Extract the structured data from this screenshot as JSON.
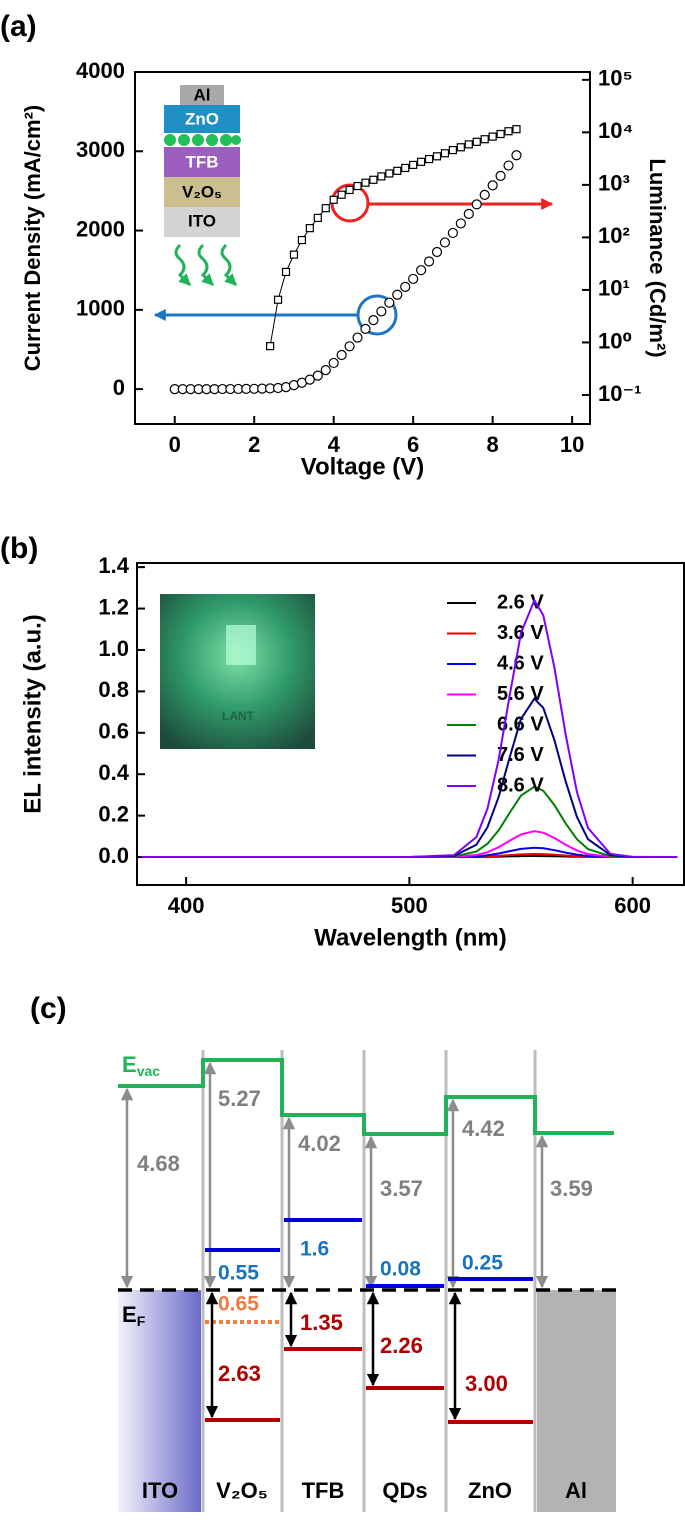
{
  "chart_data": [
    {
      "type": "scatter",
      "panel_label": "(a)",
      "xlabel": "Voltage (V)",
      "ylabel": "Current Density (mA/cm²)",
      "y2label": "Luminance (Cd/m²)",
      "xlim": [
        -1,
        10.45
      ],
      "xticks": [
        0,
        2,
        4,
        6,
        8,
        10
      ],
      "ylim": [
        -440,
        4000
      ],
      "yticks": [
        0,
        1000,
        2000,
        3000,
        4000
      ],
      "y2lim": [
        0.028,
        141000
      ],
      "y2log": true,
      "y2ticks": [
        {
          "value": 0.1,
          "label": "10⁻¹"
        },
        {
          "value": 1,
          "label": "10⁰"
        },
        {
          "value": 10,
          "label": "10¹"
        },
        {
          "value": 100,
          "label": "10²"
        },
        {
          "value": 1000,
          "label": "10³"
        },
        {
          "value": 10000,
          "label": "10⁴"
        },
        {
          "value": 100000,
          "label": "10⁵"
        }
      ],
      "inset_labels": [
        "Al",
        "ZnO",
        "TFB",
        "V₂O₅",
        "ITO"
      ],
      "series": [
        {
          "marker": "circle",
          "color": "#000000",
          "axis": "y",
          "x": [
            0,
            0.2,
            0.4,
            0.6,
            0.8,
            1.0,
            1.2,
            1.4,
            1.6,
            1.8,
            2.0,
            2.2,
            2.4,
            2.6,
            2.8,
            3.0,
            3.2,
            3.4,
            3.6,
            3.8,
            4.0,
            4.2,
            4.4,
            4.6,
            4.8,
            5.0,
            5.2,
            5.4,
            5.6,
            5.8,
            6.0,
            6.2,
            6.4,
            6.6,
            6.8,
            7.0,
            7.2,
            7.4,
            7.6,
            7.8,
            8.0,
            8.2,
            8.4,
            8.6
          ],
          "values": [
            0,
            0,
            0,
            0,
            0,
            0,
            1,
            1,
            2,
            3,
            4,
            6,
            9,
            14,
            25,
            50,
            80,
            120,
            170,
            240,
            330,
            430,
            540,
            650,
            760,
            870,
            980,
            1090,
            1190,
            1290,
            1390,
            1500,
            1610,
            1730,
            1850,
            1970,
            2090,
            2210,
            2330,
            2450,
            2570,
            2690,
            2820,
            2950
          ]
        },
        {
          "marker": "square",
          "color": "#000000",
          "axis": "y2",
          "line": true,
          "x": [
            2.4,
            2.6,
            2.8,
            3.0,
            3.2,
            3.4,
            3.6,
            3.8,
            4.0,
            4.2,
            4.4,
            4.6,
            4.8,
            5.0,
            5.2,
            5.4,
            5.6,
            5.8,
            6.0,
            6.2,
            6.4,
            6.6,
            6.8,
            7.0,
            7.2,
            7.4,
            7.6,
            7.8,
            8.0,
            8.2,
            8.4,
            8.6
          ],
          "values": [
            0.85,
            6.5,
            22,
            47,
            89,
            150,
            235,
            360,
            520,
            650,
            800,
            950,
            1100,
            1250,
            1450,
            1650,
            1850,
            2100,
            2400,
            2750,
            3100,
            3500,
            4000,
            4600,
            5200,
            5900,
            6600,
            7400,
            8300,
            9300,
            10500,
            11500
          ]
        }
      ]
    },
    {
      "type": "line",
      "panel_label": "(b)",
      "xlabel": "Wavelength (nm)",
      "ylabel": "EL intensity (a.u.)",
      "inset_text": "LANT",
      "xlim": [
        378,
        623
      ],
      "xticks": [
        400,
        500,
        600
      ],
      "ylim": [
        -0.135,
        1.42
      ],
      "yticks": [
        {
          "value": 0,
          "label": "0.0"
        },
        0.2,
        0.4,
        0.6,
        0.8,
        {
          "value": 1,
          "label": "1.0"
        },
        1.2,
        1.4
      ],
      "x": [
        380,
        400,
        450,
        500,
        520,
        530,
        535,
        540,
        545,
        550,
        556,
        560,
        565,
        570,
        575,
        580,
        590,
        600,
        620
      ],
      "series": [
        {
          "name": "2.6 V",
          "color": "#000000",
          "values": [
            0,
            0,
            0,
            0,
            0,
            0.0004,
            0.0009,
            0.0019,
            0.0032,
            0.0044,
            0.005,
            0.0047,
            0.0037,
            0.0024,
            0.0013,
            0.0006,
            0.0001,
            0,
            0
          ]
        },
        {
          "name": "3.6 V",
          "color": "#ee0000",
          "values": [
            0,
            0,
            0,
            0,
            0.0001,
            0.0012,
            0.0028,
            0.0057,
            0.0095,
            0.0131,
            0.015,
            0.0141,
            0.011,
            0.0072,
            0.0038,
            0.0017,
            0.0002,
            0,
            0
          ]
        },
        {
          "name": "4.6 V",
          "color": "#0000ee",
          "values": [
            0,
            0,
            0,
            0,
            0.0003,
            0.0035,
            0.0085,
            0.0171,
            0.0285,
            0.0393,
            0.045,
            0.0423,
            0.0331,
            0.0215,
            0.0115,
            0.0051,
            0.0006,
            0,
            0
          ]
        },
        {
          "name": "5.6 V",
          "color": "#ff00ff",
          "values": [
            0,
            0,
            0,
            0,
            0.0009,
            0.0097,
            0.0236,
            0.0475,
            0.0791,
            0.1091,
            0.125,
            0.1176,
            0.092,
            0.0596,
            0.0319,
            0.0141,
            0.0016,
            0.0001,
            0
          ]
        },
        {
          "name": "6.6 V",
          "color": "#008000",
          "values": [
            0,
            0,
            0,
            0,
            0.0025,
            0.0264,
            0.0643,
            0.1292,
            0.2152,
            0.2968,
            0.34,
            0.3199,
            0.2502,
            0.1622,
            0.0867,
            0.0384,
            0.0043,
            0.0002,
            0
          ]
        },
        {
          "name": "7.6 V",
          "color": "#000080",
          "values": [
            0,
            0,
            0,
            0,
            0.0057,
            0.0594,
            0.1446,
            0.2907,
            0.4842,
            0.6678,
            0.765,
            0.7199,
            0.563,
            0.3649,
            0.1951,
            0.0864,
            0.0096,
            0.0005,
            0
          ]
        },
        {
          "name": "8.6 V",
          "color": "#8000ff",
          "values": [
            0,
            0,
            0,
            0,
            0.0092,
            0.0962,
            0.2344,
            0.4712,
            0.7849,
            1.0825,
            1.24,
            1.1668,
            0.9126,
            0.5915,
            0.3162,
            0.1401,
            0.0156,
            0.0009,
            0
          ]
        }
      ]
    }
  ],
  "energy_diagram": {
    "panel_label": "(c)",
    "vacuum_level": {
      "symbol": "E",
      "subscript": "vac"
    },
    "fermi_level": {
      "symbol": "E",
      "subscript": "F"
    },
    "layers": [
      "ITO",
      "V₂O₅",
      "TFB",
      "QDs",
      "ZnO",
      "Al"
    ],
    "vacuum_gaps": [
      "4.68",
      "5.27",
      "4.02",
      "3.57",
      "4.42",
      "3.59"
    ],
    "conduction_offsets": [
      "0.55",
      "1.6",
      "0.08",
      "0.25"
    ],
    "defect_offset": "0.65",
    "valence_offsets": [
      "2.63",
      "1.35",
      "2.26",
      "3.00"
    ]
  }
}
